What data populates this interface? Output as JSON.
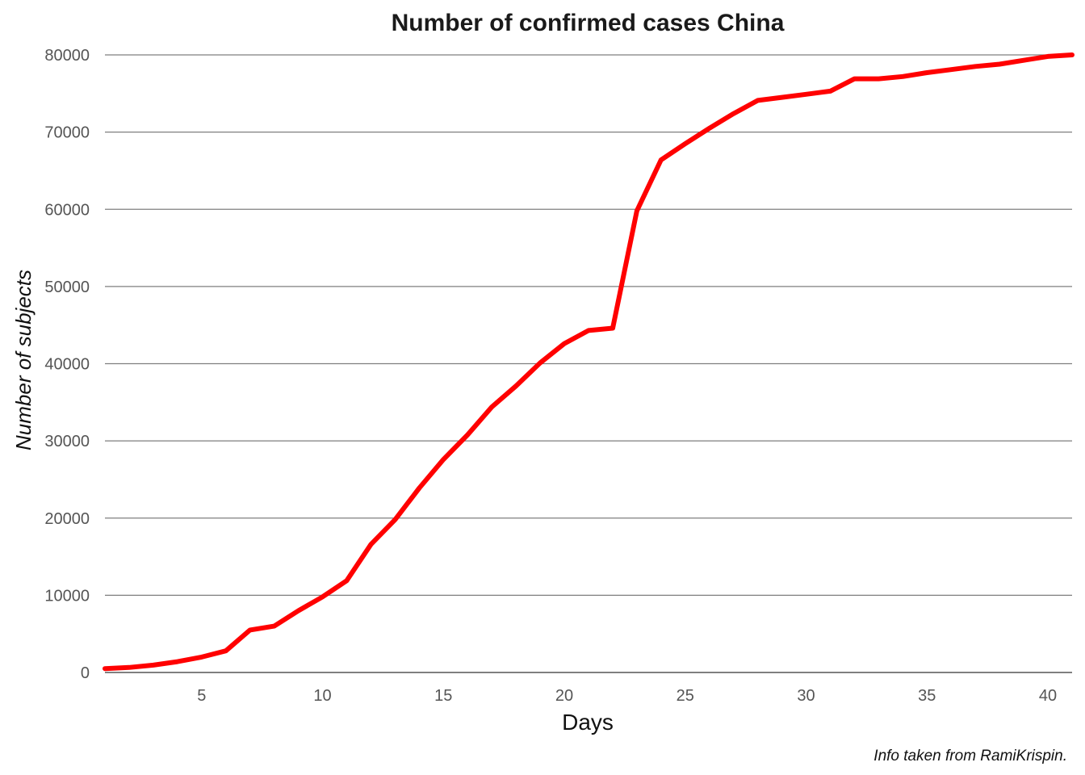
{
  "chart_data": {
    "type": "line",
    "title": "Number of confirmed cases China",
    "xlabel": "Days",
    "ylabel": "Number of subjects",
    "caption": "Info taken from RamiKrispin.",
    "xlim": [
      1,
      41
    ],
    "ylim": [
      0,
      80000
    ],
    "x_ticks": [
      5,
      10,
      15,
      20,
      25,
      30,
      35,
      40
    ],
    "y_ticks": [
      0,
      10000,
      20000,
      30000,
      40000,
      50000,
      60000,
      70000,
      80000
    ],
    "grid": "horizontal",
    "legend": "none",
    "series": [
      {
        "color": "#ff0000",
        "x": [
          1,
          2,
          3,
          4,
          5,
          6,
          7,
          8,
          9,
          10,
          11,
          12,
          13,
          14,
          15,
          16,
          17,
          18,
          19,
          20,
          21,
          22,
          23,
          24,
          25,
          26,
          27,
          28,
          29,
          30,
          31,
          32,
          33,
          34,
          35,
          36,
          37,
          38,
          39,
          40,
          41
        ],
        "y": [
          500,
          650,
          950,
          1400,
          2000,
          2800,
          5500,
          6000,
          8000,
          9800,
          11900,
          16600,
          19800,
          23900,
          27600,
          30800,
          34400,
          37100,
          40100,
          42600,
          44300,
          44600,
          59800,
          66400,
          68500,
          70500,
          72400,
          74100,
          74500,
          74900,
          75300,
          76900,
          76900,
          77200,
          77700,
          78100,
          78500,
          78800,
          79300,
          79800,
          80000
        ]
      }
    ]
  }
}
